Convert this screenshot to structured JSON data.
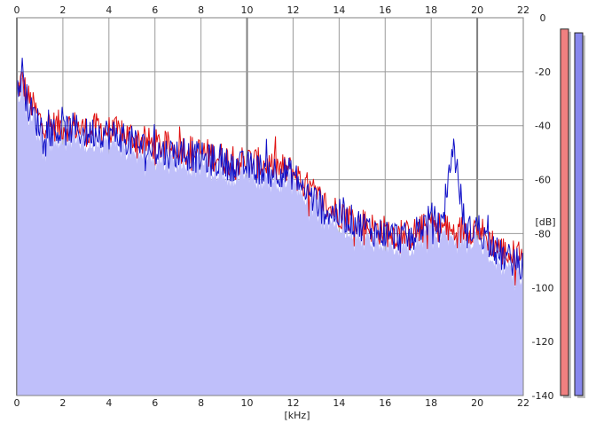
{
  "colors": {
    "background": "#ffffff",
    "grid": "#9a9a9a",
    "grid_major": "#808080",
    "fill": "#bfbffa",
    "left_channel": "#e01010",
    "right_channel": "#1010c8",
    "meter_left": "#f08080",
    "meter_right": "#8888ee",
    "meter_shadow": "#c0c0c0"
  },
  "chart_data": {
    "type": "line",
    "xlabel": "[kHz]",
    "ylabel": "[dB]",
    "xlim": [
      0,
      22
    ],
    "ylim": [
      -140,
      0
    ],
    "x_ticks": [
      "0",
      "2",
      "4",
      "6",
      "8",
      "10",
      "12",
      "14",
      "16",
      "18",
      "20",
      "22"
    ],
    "y_ticks": [
      "0",
      "-20",
      "-40",
      "-60",
      "-80",
      "-100",
      "-120",
      "-140"
    ],
    "grid": true,
    "series": [
      {
        "channel": "left",
        "color": "#e01010",
        "x": [
          0,
          0.2,
          0.5,
          1,
          1.5,
          2,
          2.5,
          3,
          3.5,
          4,
          4.5,
          5,
          5.5,
          6,
          6.5,
          7,
          7.5,
          8,
          8.5,
          9,
          9.5,
          10,
          10.5,
          11,
          11.5,
          12,
          12.5,
          13,
          13.5,
          14,
          14.5,
          15,
          15.5,
          16,
          16.5,
          17,
          17.5,
          18,
          18.5,
          19,
          19.5,
          20,
          20.5,
          21,
          21.5,
          22
        ],
        "values": [
          -28,
          -23,
          -30,
          -38,
          -40,
          -40,
          -40,
          -42,
          -41,
          -42,
          -43,
          -44,
          -46,
          -47,
          -48,
          -48,
          -49,
          -50,
          -51,
          -52,
          -53,
          -53,
          -54,
          -55,
          -56,
          -57,
          -62,
          -66,
          -70,
          -72,
          -74,
          -76,
          -78,
          -79,
          -80,
          -81,
          -79,
          -76,
          -78,
          -80,
          -78,
          -78,
          -82,
          -86,
          -88,
          -88
        ]
      },
      {
        "channel": "right",
        "color": "#1010c8",
        "x": [
          0,
          0.2,
          0.5,
          1,
          1.5,
          2,
          2.5,
          3,
          3.5,
          4,
          4.5,
          5,
          5.5,
          6,
          6.5,
          7,
          7.5,
          8,
          8.5,
          9,
          9.5,
          10,
          10.5,
          11,
          11.5,
          12,
          12.5,
          13,
          13.5,
          14,
          14.5,
          15,
          15.5,
          16,
          16.5,
          17,
          17.5,
          18,
          18.5,
          18.95,
          19.5,
          20,
          20.5,
          21,
          21.5,
          22
        ],
        "values": [
          -30,
          -21,
          -33,
          -40,
          -42,
          -42,
          -41,
          -43,
          -42,
          -43,
          -44,
          -46,
          -48,
          -49,
          -50,
          -50,
          -51,
          -52,
          -53,
          -54,
          -55,
          -55,
          -56,
          -56,
          -57,
          -58,
          -64,
          -68,
          -72,
          -73,
          -75,
          -77,
          -79,
          -80,
          -81,
          -82,
          -78,
          -74,
          -79,
          -46,
          -80,
          -77,
          -84,
          -88,
          -90,
          -92
        ]
      }
    ]
  },
  "meters": {
    "levels": [
      0.97,
      0.96
    ]
  }
}
